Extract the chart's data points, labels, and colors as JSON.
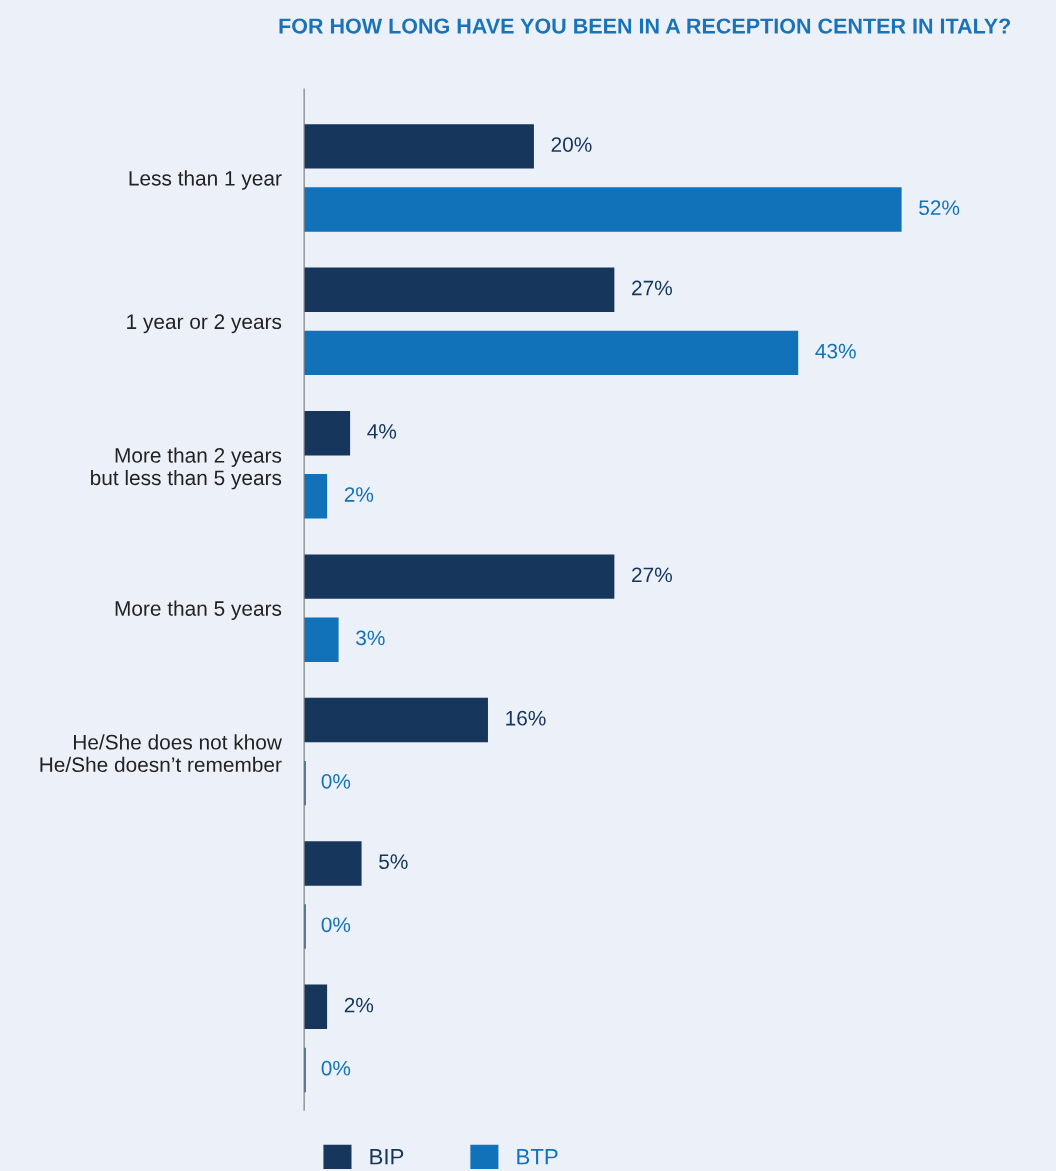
{
  "chart_data": {
    "type": "bar",
    "orientation": "horizontal",
    "title": "FOR HOW LONG HAVE YOU BEEN IN A RECEPTION CENTER IN ITALY?",
    "categories": [
      "Less than 1 year",
      "1 year or 2 years",
      "More than 2 years\nbut less than 5 years",
      "More than 5 years",
      "He/She does not khow\nHe/She doesn’t remember",
      null,
      null
    ],
    "series": [
      {
        "name": "BIP",
        "color": "#16365c",
        "values": [
          20,
          27,
          4,
          27,
          16,
          5,
          2
        ],
        "value_labels": [
          "20%",
          "27%",
          "4%",
          "27%",
          "16%",
          "5%",
          "2%"
        ]
      },
      {
        "name": "BTP",
        "color": "#1172b9",
        "values": [
          52,
          43,
          2,
          3,
          0,
          0,
          0
        ],
        "value_labels": [
          "52%",
          "43%",
          "2%",
          "3%",
          "0%",
          "0%",
          "0%"
        ]
      }
    ],
    "tick_labels": "y",
    "grid": false,
    "legend": "bottom"
  }
}
